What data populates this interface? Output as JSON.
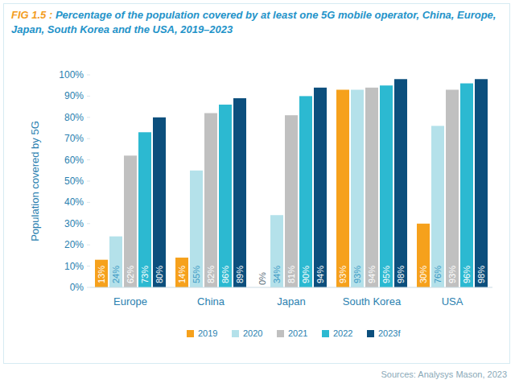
{
  "chart_data": {
    "type": "bar",
    "title": "FIG 1.5 : Percentage of the population covered by at least one 5G mobile operator, China, Europe, Japan, South Korea and the USA, 2019–2023",
    "y_label": "Population covered by 5G",
    "source": "Sources: Analysys Mason, 2023",
    "categories": [
      "Europe",
      "China",
      "Japan",
      "South Korea",
      "USA"
    ],
    "series": [
      {
        "name": "2019",
        "color": "#f6a11c",
        "values": [
          13,
          14,
          0,
          93,
          30
        ],
        "value_labels": [
          "13%",
          "14%",
          "0%",
          "93%",
          "30%"
        ]
      },
      {
        "name": "2020",
        "color": "#b4e1ea",
        "values": [
          24,
          55,
          34,
          93,
          76
        ],
        "value_labels": [
          "24%",
          "55%",
          "34%",
          "93%",
          "76%"
        ]
      },
      {
        "name": "2021",
        "color": "#c0c0c0",
        "values": [
          62,
          82,
          81,
          94,
          93
        ],
        "value_labels": [
          "62%",
          "82%",
          "81%",
          "94%",
          "93%"
        ]
      },
      {
        "name": "2022",
        "color": "#2cb9d1",
        "values": [
          73,
          86,
          90,
          95,
          96
        ],
        "value_labels": [
          "73%",
          "86%",
          "90%",
          "95%",
          "96%"
        ]
      },
      {
        "name": "2023f",
        "color": "#0c4f7d",
        "values": [
          80,
          89,
          94,
          98,
          98
        ],
        "value_labels": [
          "80%",
          "89%",
          "94%",
          "98%",
          "98%"
        ]
      }
    ],
    "ylim": [
      0,
      100
    ],
    "yticks": [
      {
        "value": 0,
        "label": "0%"
      },
      {
        "value": 10,
        "label": "10%"
      },
      {
        "value": 20,
        "label": "20%"
      },
      {
        "value": 30,
        "label": "30%"
      },
      {
        "value": 40,
        "label": "40%"
      },
      {
        "value": 50,
        "label": "50%"
      },
      {
        "value": 60,
        "label": "60%"
      },
      {
        "value": 70,
        "label": "70%"
      },
      {
        "value": 80,
        "label": "80%"
      },
      {
        "value": 90,
        "label": "90%"
      },
      {
        "value": 100,
        "label": "100%"
      }
    ],
    "grid": false,
    "data_labels": true,
    "legend": "bottom"
  }
}
